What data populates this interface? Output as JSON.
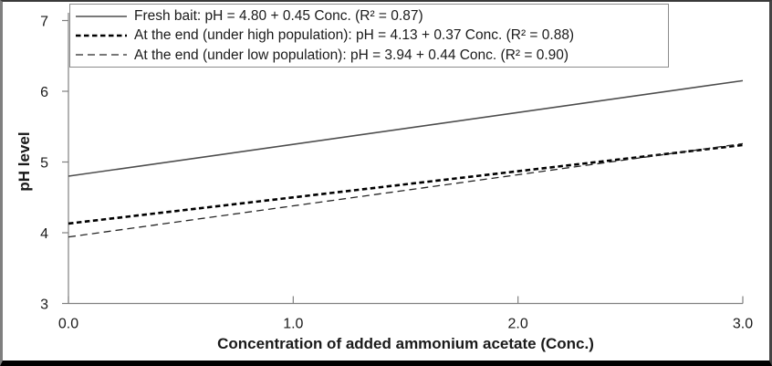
{
  "chart_data": {
    "type": "line",
    "title": "",
    "xlabel": "Concentration of added ammonium acetate (Conc.)",
    "ylabel": "pH level",
    "xlim": [
      0.0,
      3.0
    ],
    "ylim": [
      3,
      7
    ],
    "grid": false,
    "legend_position": "top-left-inside",
    "axis_color": "#808080",
    "text_color": "#1a1a1a",
    "x_ticks": [
      {
        "value": 0.0,
        "label": "0.0"
      },
      {
        "value": 1.0,
        "label": "1.0"
      },
      {
        "value": 2.0,
        "label": "2.0"
      },
      {
        "value": 3.0,
        "label": "3.0"
      }
    ],
    "y_ticks": [
      {
        "value": 3,
        "label": "3"
      },
      {
        "value": 4,
        "label": "4"
      },
      {
        "value": 5,
        "label": "5"
      },
      {
        "value": 6,
        "label": "6"
      },
      {
        "value": 7,
        "label": "7"
      }
    ],
    "series": [
      {
        "name": "fresh-bait",
        "label": "Fresh bait: pH = 4.80 + 0.45 Conc. (R² = 0.87)",
        "equation": {
          "intercept": 4.8,
          "slope": 0.45,
          "r2": 0.87
        },
        "x": [
          0.0,
          3.0
        ],
        "y": [
          4.8,
          6.15
        ],
        "line_style": "solid",
        "color": "#4d4d4d",
        "stroke_width": 1.6
      },
      {
        "name": "end-high-population",
        "label": "At the end (under high population): pH = 4.13 + 0.37 Conc. (R² = 0.88)",
        "equation": {
          "intercept": 4.13,
          "slope": 0.37,
          "r2": 0.88
        },
        "x": [
          0.0,
          3.0
        ],
        "y": [
          4.13,
          5.24
        ],
        "line_style": "dashed-heavy",
        "color": "#000000",
        "stroke_width": 2.6
      },
      {
        "name": "end-low-population",
        "label": "At the end (under low population): pH = 3.94 + 0.44 Conc. (R² = 0.90)",
        "equation": {
          "intercept": 3.94,
          "slope": 0.44,
          "r2": 0.9
        },
        "x": [
          0.0,
          3.0
        ],
        "y": [
          3.94,
          5.26
        ],
        "line_style": "dashed-light",
        "color": "#262626",
        "stroke_width": 1.3
      }
    ]
  }
}
